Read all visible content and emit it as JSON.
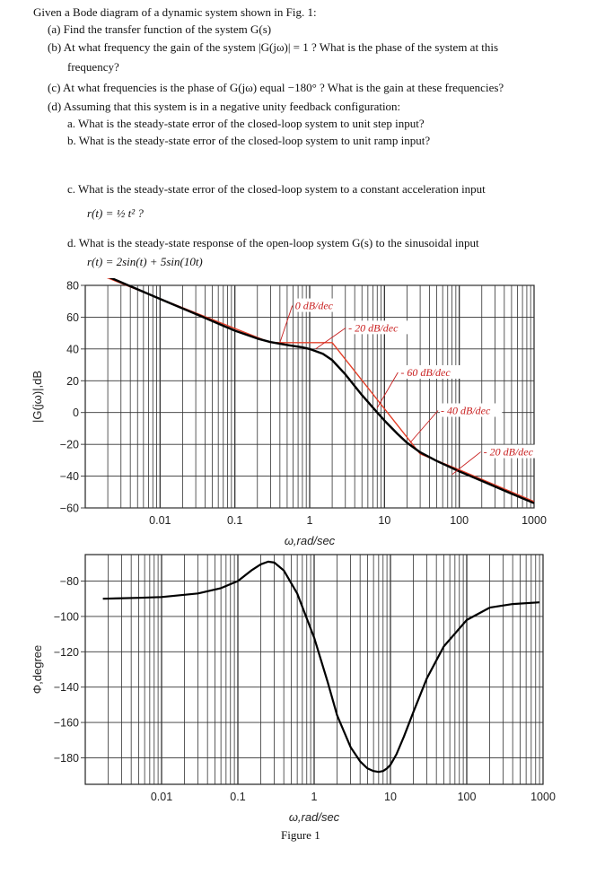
{
  "problem": {
    "intro": "Given a Bode diagram of a dynamic system shown in Fig. 1:",
    "a": "(a) Find the transfer function of the system G(s)",
    "b_1": "(b) At what frequency the gain of the system |G(jω)| = 1 ? What is the phase of the system at this",
    "b_2": "frequency?",
    "c": "(c) At what frequencies is the phase of G(jω) equal −180° ? What is the gain at these frequencies?",
    "d": "(d) Assuming that this system is in a negative unity feedback configuration:",
    "d_a": "a.  What is the steady-state error of the closed-loop system to unit step input?",
    "d_b": "b.  What is the steady-state error of the closed-loop system to unit ramp input?",
    "d_c": "c.  What is the steady-state error of the closed-loop system to a constant acceleration input",
    "d_c_formula": "r(t) = ½ t² ?",
    "d_d": "d.  What is the steady-state response of the open-loop system G(s) to the sinusoidal input",
    "d_d_formula": "r(t) = 2sin(t) + 5sin(10t)"
  },
  "figure_caption": "Figure 1",
  "chart_data": [
    {
      "type": "line",
      "title": "",
      "xlabel": "ω,rad/sec",
      "ylabel": "|G(jω)|,dB",
      "xscale": "log",
      "xlim": [
        0.001,
        1000
      ],
      "ylim": [
        -60,
        80
      ],
      "xticks": [
        "0.01",
        "0.1",
        "1",
        "10",
        "100",
        "1000"
      ],
      "yticks": [
        "80",
        "60",
        "40",
        "20",
        "0",
        "−20",
        "−40",
        "−60"
      ],
      "grid": true,
      "series": [
        {
          "style": "black-exact",
          "x": [
            0.0017,
            0.003,
            0.01,
            0.03,
            0.1,
            0.2,
            0.3,
            0.5,
            0.8,
            1,
            1.5,
            2,
            3,
            5,
            8,
            10,
            15,
            20,
            30,
            50,
            100,
            200,
            500,
            1000
          ],
          "y": [
            87,
            82,
            71.5,
            62,
            51.5,
            46.5,
            44.3,
            42.5,
            41,
            40,
            37,
            33,
            24,
            11,
            0,
            -5,
            -13.5,
            -19,
            -25,
            -30.5,
            -37,
            -43,
            -51,
            -57
          ]
        },
        {
          "style": "red-asymptote",
          "x": [
            0.0017,
            0.3,
            2,
            30,
            100,
            1000
          ],
          "y": [
            86,
            44,
            44,
            -26,
            -36,
            -56
          ]
        }
      ],
      "annotations": [
        "- 20 dB/dec",
        "0 dB/dec",
        "- 20 dB/dec",
        "- 60 dB/dec",
        "- 40 dB/dec",
        "- 20 dB/dec"
      ]
    },
    {
      "type": "line",
      "title": "",
      "xlabel": "ω,rad/sec",
      "ylabel": "Φ,degree",
      "xscale": "log",
      "xlim": [
        0.001,
        1000
      ],
      "ylim": [
        -195,
        -65
      ],
      "xticks": [
        "0.01",
        "0.1",
        "1",
        "10",
        "100",
        "1000"
      ],
      "yticks": [
        "−80",
        "−100",
        "−120",
        "−140",
        "−160",
        "−180"
      ],
      "grid": true,
      "series": [
        {
          "style": "black",
          "x": [
            0.0017,
            0.005,
            0.01,
            0.03,
            0.06,
            0.1,
            0.15,
            0.2,
            0.25,
            0.3,
            0.4,
            0.6,
            1,
            1.5,
            2,
            3,
            4,
            5,
            6,
            7,
            8,
            9,
            10,
            12,
            15,
            20,
            30,
            50,
            100,
            200,
            400,
            900
          ],
          "y": [
            -90,
            -89.5,
            -89,
            -87,
            -84,
            -80,
            -74,
            -70.5,
            -69,
            -69.5,
            -74,
            -87,
            -112,
            -137,
            -156,
            -174,
            -182,
            -186,
            -187.5,
            -188,
            -187.5,
            -186,
            -184,
            -178,
            -168,
            -154,
            -135,
            -117,
            -102,
            -95,
            -93,
            -92
          ]
        }
      ]
    }
  ]
}
